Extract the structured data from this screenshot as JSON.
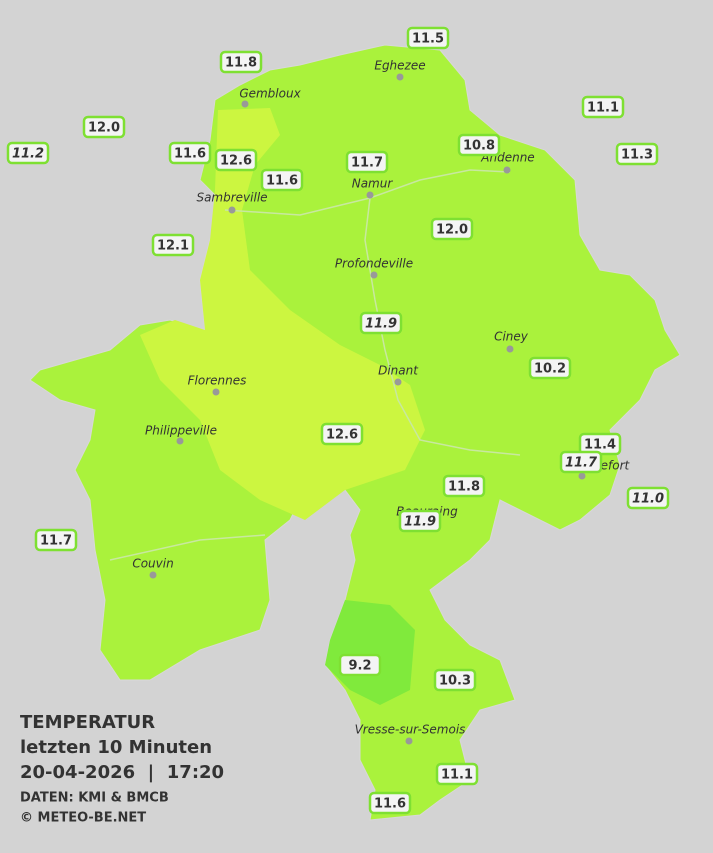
{
  "header": {
    "title": "TEMPERATUR",
    "subtitle": "letzten 10 Minuten",
    "datetime": "20-04-2026  |  17:20",
    "source": "DATEN: KMI & BMCB",
    "credit": "© METEO-BE.NET"
  },
  "cities": [
    {
      "name": "Eghezee"
    },
    {
      "name": "Gembloux"
    },
    {
      "name": "Andenne"
    },
    {
      "name": "Namur"
    },
    {
      "name": "Sambreville"
    },
    {
      "name": "Profondeville"
    },
    {
      "name": "Ciney"
    },
    {
      "name": "Dinant"
    },
    {
      "name": "Florennes"
    },
    {
      "name": "Philippeville"
    },
    {
      "name": "Rochefort"
    },
    {
      "name": "Beauraing"
    },
    {
      "name": "Couvin"
    },
    {
      "name": "Vresse-sur-Semois"
    }
  ],
  "stations": [
    {
      "value": "11.5"
    },
    {
      "value": "11.8"
    },
    {
      "value": "11.1"
    },
    {
      "value": "12.0"
    },
    {
      "value": "11.2"
    },
    {
      "value": "11.6"
    },
    {
      "value": "12.6"
    },
    {
      "value": "10.8"
    },
    {
      "value": "11.7"
    },
    {
      "value": "11.3"
    },
    {
      "value": "11.6"
    },
    {
      "value": "12.0"
    },
    {
      "value": "12.1"
    },
    {
      "value": "11.9"
    },
    {
      "value": "10.2"
    },
    {
      "value": "12.6"
    },
    {
      "value": "11.4"
    },
    {
      "value": "11.7"
    },
    {
      "value": "11.0"
    },
    {
      "value": "11.8"
    },
    {
      "value": "11.9"
    },
    {
      "value": "11.7"
    },
    {
      "value": "9.2"
    },
    {
      "value": "10.3"
    },
    {
      "value": "11.1"
    },
    {
      "value": "11.6"
    }
  ]
}
